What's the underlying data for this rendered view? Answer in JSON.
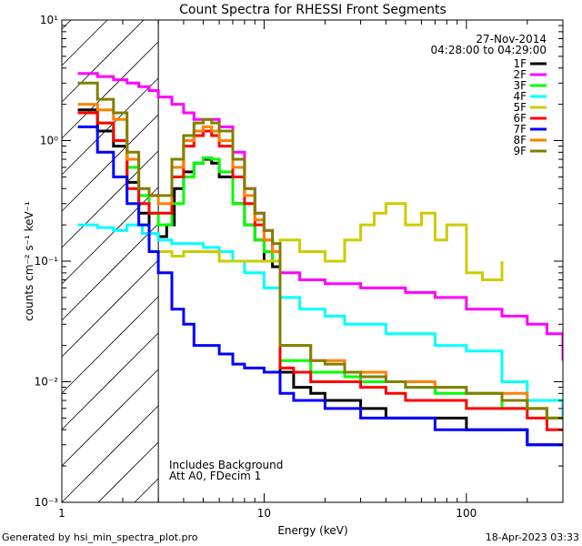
{
  "chart_data": {
    "type": "line",
    "title": "Count Spectra for RHESSI Front Segments",
    "xlabel": "Energy (keV)",
    "ylabel": "counts cm⁻² s⁻¹ keV⁻¹",
    "xscale": "log",
    "yscale": "log",
    "xlim": [
      1,
      300
    ],
    "ylim": [
      0.001,
      10
    ],
    "x_ticks": [
      {
        "value": 1,
        "label": "1"
      },
      {
        "value": 10,
        "label": "10"
      },
      {
        "value": 100,
        "label": "100"
      }
    ],
    "y_ticks": [
      {
        "value": 0.001,
        "label": "10⁻³"
      },
      {
        "value": 0.01,
        "label": "10⁻²"
      },
      {
        "value": 0.1,
        "label": "10⁻¹"
      },
      {
        "value": 1,
        "label": "10⁰"
      },
      {
        "value": 10,
        "label": "10¹"
      }
    ],
    "date": "27-Nov-2014",
    "time_range": "04:28:00 to 04:29:00",
    "hatched_region_max_energy": 3,
    "annotations": [
      "Includes Background",
      "Att A0, FDecim 1"
    ],
    "legend_position": "top-right",
    "series": [
      {
        "name": "1F",
        "color": "#000000",
        "x": [
          1.2,
          1.5,
          1.8,
          2.1,
          2.4,
          2.7,
          3,
          3.3,
          3.6,
          4,
          4.5,
          5,
          5.5,
          6,
          7,
          8,
          9,
          10,
          11,
          12,
          14,
          17,
          20,
          25,
          30,
          40,
          50,
          70,
          100,
          150,
          200,
          250,
          300
        ],
        "y": [
          1.8,
          1.2,
          0.9,
          0.45,
          0.25,
          0.17,
          0.16,
          0.2,
          0.4,
          0.55,
          0.65,
          0.7,
          0.65,
          0.5,
          0.3,
          0.2,
          0.15,
          0.1,
          0.09,
          0.012,
          0.009,
          0.008,
          0.007,
          0.007,
          0.006,
          0.005,
          0.005,
          0.005,
          0.004,
          0.004,
          0.003,
          0.003,
          0.003
        ]
      },
      {
        "name": "2F",
        "color": "#ff00ff",
        "x": [
          1.2,
          1.5,
          1.8,
          2.1,
          2.4,
          2.7,
          3,
          3.5,
          4,
          4.5,
          5,
          5.5,
          6,
          7,
          8,
          9,
          10,
          11,
          12,
          15,
          20,
          30,
          50,
          70,
          100,
          150,
          200,
          250,
          300
        ],
        "y": [
          3.6,
          3.4,
          3.2,
          3,
          2.8,
          2.6,
          2.3,
          2.0,
          1.7,
          1.5,
          1.5,
          1.5,
          1.3,
          0.8,
          0.4,
          0.25,
          0.18,
          0.1,
          0.08,
          0.07,
          0.065,
          0.06,
          0.055,
          0.05,
          0.04,
          0.035,
          0.03,
          0.025,
          0.015
        ]
      },
      {
        "name": "3F",
        "color": "#00ff00",
        "x": [
          1.2,
          1.5,
          1.8,
          2.1,
          2.4,
          2.7,
          3,
          3.5,
          4,
          4.5,
          5,
          5.5,
          6,
          7,
          8,
          9,
          10,
          11,
          12,
          14,
          17,
          20,
          25,
          30,
          40,
          50,
          70,
          100,
          150,
          200,
          250,
          300
        ],
        "y": [
          1.7,
          1.4,
          1.0,
          0.6,
          0.35,
          0.25,
          0.2,
          0.3,
          0.5,
          0.65,
          0.72,
          0.7,
          0.55,
          0.3,
          0.2,
          0.15,
          0.12,
          0.1,
          0.015,
          0.015,
          0.012,
          0.012,
          0.011,
          0.01,
          0.01,
          0.009,
          0.008,
          0.008,
          0.006,
          0.006,
          0.005,
          0.005
        ]
      },
      {
        "name": "4F",
        "color": "#00ffff",
        "x": [
          1.2,
          1.5,
          1.8,
          2.1,
          2.5,
          3,
          3.5,
          4,
          5,
          6,
          7,
          8,
          10,
          12,
          15,
          20,
          25,
          30,
          40,
          50,
          70,
          100,
          150,
          200,
          300
        ],
        "y": [
          0.2,
          0.19,
          0.18,
          0.2,
          0.17,
          0.15,
          0.14,
          0.14,
          0.13,
          0.12,
          0.1,
          0.08,
          0.06,
          0.05,
          0.04,
          0.035,
          0.03,
          0.03,
          0.025,
          0.025,
          0.02,
          0.018,
          0.01,
          0.007,
          0.005
        ]
      },
      {
        "name": "5F",
        "color": "#cccc00",
        "x": [
          3,
          3.5,
          4,
          5,
          6,
          8,
          10,
          12,
          15,
          20,
          25,
          30,
          35,
          40,
          50,
          60,
          70,
          80,
          100,
          120,
          150
        ],
        "y": [
          0.12,
          0.11,
          0.12,
          0.12,
          0.1,
          0.1,
          0.1,
          0.15,
          0.12,
          0.1,
          0.15,
          0.2,
          0.25,
          0.3,
          0.2,
          0.25,
          0.15,
          0.2,
          0.08,
          0.07,
          0.1
        ]
      },
      {
        "name": "6F",
        "color": "#ff0000",
        "x": [
          1.2,
          1.5,
          1.8,
          2.1,
          2.4,
          2.7,
          3,
          3.5,
          4,
          4.5,
          5,
          5.5,
          6,
          7,
          8,
          9,
          10,
          11,
          12,
          14,
          17,
          20,
          25,
          30,
          40,
          50,
          70,
          100,
          150,
          200,
          250,
          300
        ],
        "y": [
          1.7,
          1.4,
          1.0,
          0.4,
          0.3,
          0.25,
          0.25,
          0.5,
          0.9,
          1.1,
          1.2,
          1.1,
          0.9,
          0.5,
          0.3,
          0.2,
          0.15,
          0.12,
          0.013,
          0.012,
          0.01,
          0.01,
          0.01,
          0.009,
          0.008,
          0.007,
          0.007,
          0.006,
          0.006,
          0.005,
          0.004,
          0.004
        ]
      },
      {
        "name": "7F",
        "color": "#0000ff",
        "x": [
          1.2,
          1.5,
          1.8,
          2.1,
          2.4,
          2.7,
          3,
          3.5,
          4,
          4.5,
          5,
          6,
          7,
          8,
          10,
          12,
          14,
          17,
          20,
          25,
          30,
          40,
          50,
          70,
          100,
          150,
          200,
          250,
          300
        ],
        "y": [
          1.3,
          0.8,
          0.5,
          0.3,
          0.2,
          0.12,
          0.08,
          0.04,
          0.03,
          0.02,
          0.02,
          0.017,
          0.014,
          0.013,
          0.012,
          0.008,
          0.007,
          0.007,
          0.006,
          0.006,
          0.005,
          0.005,
          0.005,
          0.004,
          0.004,
          0.004,
          0.003,
          0.003,
          0.003
        ]
      },
      {
        "name": "8F",
        "color": "#ff8000",
        "x": [
          1.2,
          1.5,
          1.8,
          2.1,
          2.4,
          2.7,
          3,
          3.5,
          4,
          4.5,
          5,
          5.5,
          6,
          7,
          8,
          9,
          10,
          11,
          12,
          14,
          17,
          20,
          25,
          30,
          40,
          50,
          70,
          100,
          150,
          200,
          250,
          300
        ],
        "y": [
          2.0,
          1.8,
          1.5,
          0.7,
          0.4,
          0.35,
          0.3,
          0.6,
          1.0,
          1.2,
          1.3,
          1.2,
          1.0,
          0.6,
          0.35,
          0.22,
          0.15,
          0.12,
          0.02,
          0.02,
          0.015,
          0.015,
          0.012,
          0.012,
          0.01,
          0.01,
          0.009,
          0.008,
          0.008,
          0.006,
          0.005,
          0.005
        ]
      },
      {
        "name": "9F",
        "color": "#808000",
        "x": [
          1.2,
          1.5,
          1.8,
          2.1,
          2.4,
          2.7,
          3,
          3.5,
          4,
          4.5,
          5,
          5.5,
          6,
          7,
          8,
          9,
          10,
          11,
          12,
          14,
          17,
          20,
          25,
          30,
          40,
          50,
          70,
          100,
          150,
          200,
          250,
          300
        ],
        "y": [
          3.0,
          2.2,
          1.7,
          0.8,
          0.4,
          0.35,
          0.35,
          0.7,
          1.1,
          1.4,
          1.5,
          1.4,
          1.2,
          0.7,
          0.4,
          0.25,
          0.18,
          0.14,
          0.02,
          0.02,
          0.015,
          0.014,
          0.012,
          0.011,
          0.01,
          0.009,
          0.009,
          0.008,
          0.007,
          0.006,
          0.005,
          0.005
        ]
      }
    ]
  },
  "footer": {
    "generated_by": "Generated by hsi_min_spectra_plot.pro",
    "timestamp": "18-Apr-2023 03:33"
  }
}
